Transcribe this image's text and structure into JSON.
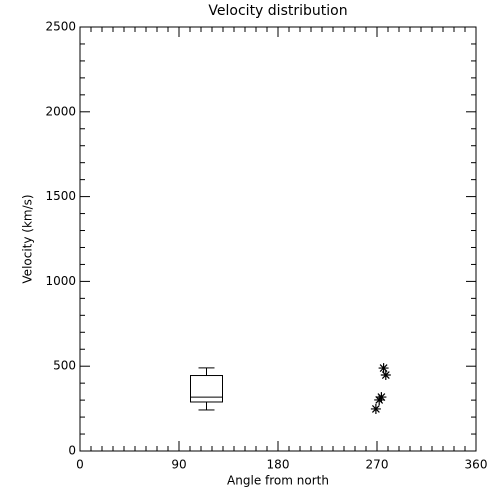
{
  "chart_data": {
    "type": "box",
    "title": "Velocity distribution",
    "xlabel": "Angle from north",
    "ylabel": "Velocity (km/s)",
    "xlim": [
      0,
      360
    ],
    "xticks": [
      0,
      90,
      180,
      270,
      360
    ],
    "x_minor_ticks": [
      10,
      20,
      30,
      40,
      50,
      60,
      70,
      80,
      100,
      110,
      120,
      130,
      140,
      150,
      160,
      170,
      190,
      200,
      210,
      220,
      230,
      240,
      250,
      260,
      280,
      290,
      300,
      310,
      320,
      330,
      340,
      350
    ],
    "ylim": [
      0,
      2500
    ],
    "yticks": [
      0,
      500,
      1000,
      1500,
      2000,
      2500
    ],
    "y_minor_ticks": [
      100,
      200,
      300,
      400,
      600,
      700,
      800,
      900,
      1100,
      1200,
      1300,
      1400,
      1600,
      1700,
      1800,
      1900,
      2100,
      2200,
      2300,
      2400
    ],
    "color": "#000000",
    "box": {
      "x": 115,
      "whisker_low": 242,
      "q1": 289,
      "median": 318,
      "q3": 445,
      "whisker_high": 490
    },
    "points": {
      "x": [
        269,
        272,
        274,
        276,
        278
      ],
      "y": [
        248,
        301,
        318,
        489,
        448
      ]
    }
  }
}
